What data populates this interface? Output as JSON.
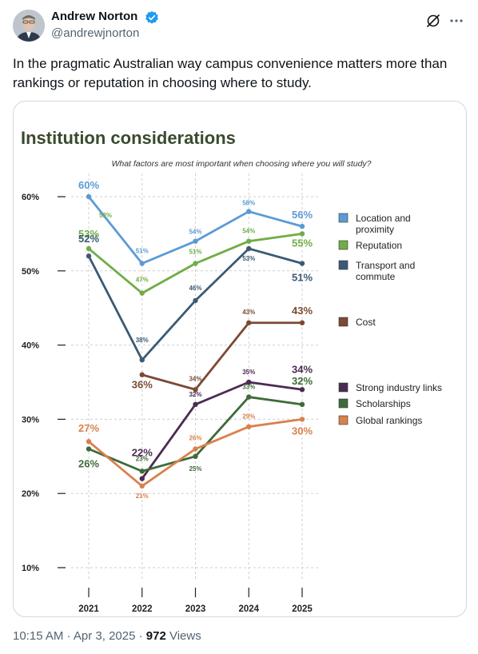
{
  "tweet": {
    "author": {
      "name": "Andrew Norton",
      "handle": "@andrewjnorton"
    },
    "text": "In the pragmatic Australian way campus convenience matters more than rankings or reputation in choosing where to study.",
    "timestamp": "10:15 AM · Apr 3, 2025",
    "separator": " · ",
    "views_count": "972",
    "views_label": " Views",
    "icons": {
      "verified": "verified-badge-icon",
      "grok": "grok-icon",
      "more": "more-icon"
    },
    "colors": {
      "verified": "#1d9bf0"
    }
  },
  "chart_data": {
    "type": "line",
    "title": "Institution considerations",
    "subtitle": "What factors are most important when choosing where you will study?",
    "x": [
      "2021",
      "2022",
      "2023",
      "2024",
      "2025"
    ],
    "y_ticks": [
      "60%",
      "50%",
      "40%",
      "30%",
      "20%",
      "10%"
    ],
    "ylim": [
      10,
      60
    ],
    "series": [
      {
        "name": "Location and proximity",
        "color": "#5b9bd5",
        "values": [
          60,
          51,
          54,
          58,
          56
        ],
        "labels": [
          "60%",
          "51%",
          "54%",
          "58%",
          "56%"
        ]
      },
      {
        "name": "Reputation",
        "color": "#70ad47",
        "values": [
          53,
          47,
          51,
          54,
          55
        ],
        "labels": [
          "53%",
          "47%",
          "51%",
          "54%",
          "55%"
        ]
      },
      {
        "name": "Transport and commute",
        "color": "#3b5a75",
        "values": [
          52,
          38,
          46,
          53,
          51
        ],
        "labels": [
          "52%",
          "38%",
          "46%",
          "53%",
          "51%"
        ]
      },
      {
        "name": "Cost",
        "color": "#7b4a33",
        "values": [
          null,
          36,
          34,
          43,
          43
        ],
        "labels": [
          "",
          "36%",
          "34%",
          "43%",
          "43%"
        ]
      },
      {
        "name": "Strong industry links",
        "color": "#4a2b52",
        "values": [
          null,
          22,
          32,
          35,
          34
        ],
        "labels": [
          "",
          "22%",
          "32%",
          "35%",
          "34%"
        ]
      },
      {
        "name": "Scholarships",
        "color": "#3f6b3a",
        "values": [
          26,
          23,
          25,
          33,
          32
        ],
        "labels": [
          "26%",
          "23%",
          "25%",
          "33%",
          "32%"
        ]
      },
      {
        "name": "Global rankings",
        "color": "#d9814d",
        "values": [
          27,
          21,
          26,
          29,
          30
        ],
        "labels": [
          "27%",
          "21%",
          "26%",
          "29%",
          "30%"
        ]
      }
    ],
    "legend_position": "right",
    "grid": true,
    "title_color": "#3a4a2f"
  }
}
